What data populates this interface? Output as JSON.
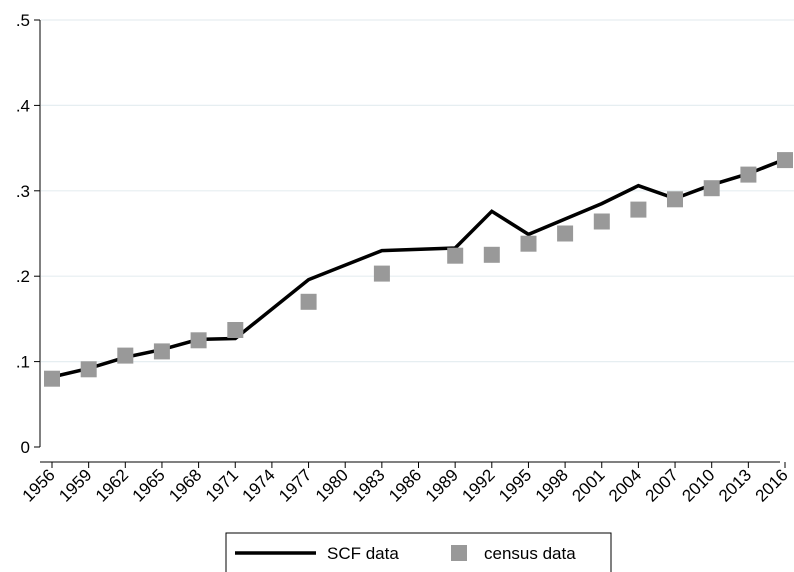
{
  "chart_data": {
    "type": "line",
    "x": [
      1956,
      1959,
      1962,
      1965,
      1968,
      1971,
      1977,
      1983,
      1989,
      1992,
      1995,
      1998,
      2001,
      2004,
      2007,
      2010,
      2013,
      2016
    ],
    "x_ticks": [
      "1956",
      "1959",
      "1962",
      "1965",
      "1968",
      "1971",
      "1974",
      "1977",
      "1980",
      "1983",
      "1986",
      "1989",
      "1992",
      "1995",
      "1998",
      "2001",
      "2004",
      "2007",
      "2010",
      "2013",
      "2016"
    ],
    "xlim": [
      1956,
      2016
    ],
    "ylim": [
      0,
      0.5
    ],
    "y_ticks": [
      {
        "value": 0,
        "label": "0"
      },
      {
        "value": 0.1,
        "label": ".1"
      },
      {
        "value": 0.2,
        "label": ".2"
      },
      {
        "value": 0.3,
        "label": ".3"
      },
      {
        "value": 0.4,
        "label": ".4"
      },
      {
        "value": 0.5,
        "label": ".5"
      }
    ],
    "grid": true,
    "legend_position": "bottom",
    "series": [
      {
        "name": "SCF data",
        "type": "line",
        "color": "#000000",
        "x": [
          1956,
          1959,
          1962,
          1965,
          1968,
          1971,
          1977,
          1983,
          1989,
          1992,
          1995,
          1998,
          2001,
          2004,
          2007,
          2010,
          2013,
          2016
        ],
        "values": [
          0.082,
          0.092,
          0.105,
          0.114,
          0.126,
          0.127,
          0.196,
          0.23,
          0.233,
          0.276,
          0.249,
          0.267,
          0.285,
          0.306,
          0.291,
          0.307,
          0.32,
          0.337
        ]
      },
      {
        "name": "census data",
        "type": "scatter",
        "color": "#999999",
        "x": [
          1956,
          1959,
          1962,
          1965,
          1968,
          1971,
          1977,
          1983,
          1989,
          1992,
          1995,
          1998,
          2001,
          2004,
          2007,
          2010,
          2013,
          2016
        ],
        "values": [
          0.08,
          0.091,
          0.107,
          0.112,
          0.125,
          0.137,
          0.17,
          0.203,
          0.224,
          0.225,
          0.238,
          0.25,
          0.264,
          0.278,
          0.29,
          0.303,
          0.319,
          0.336
        ]
      }
    ]
  }
}
